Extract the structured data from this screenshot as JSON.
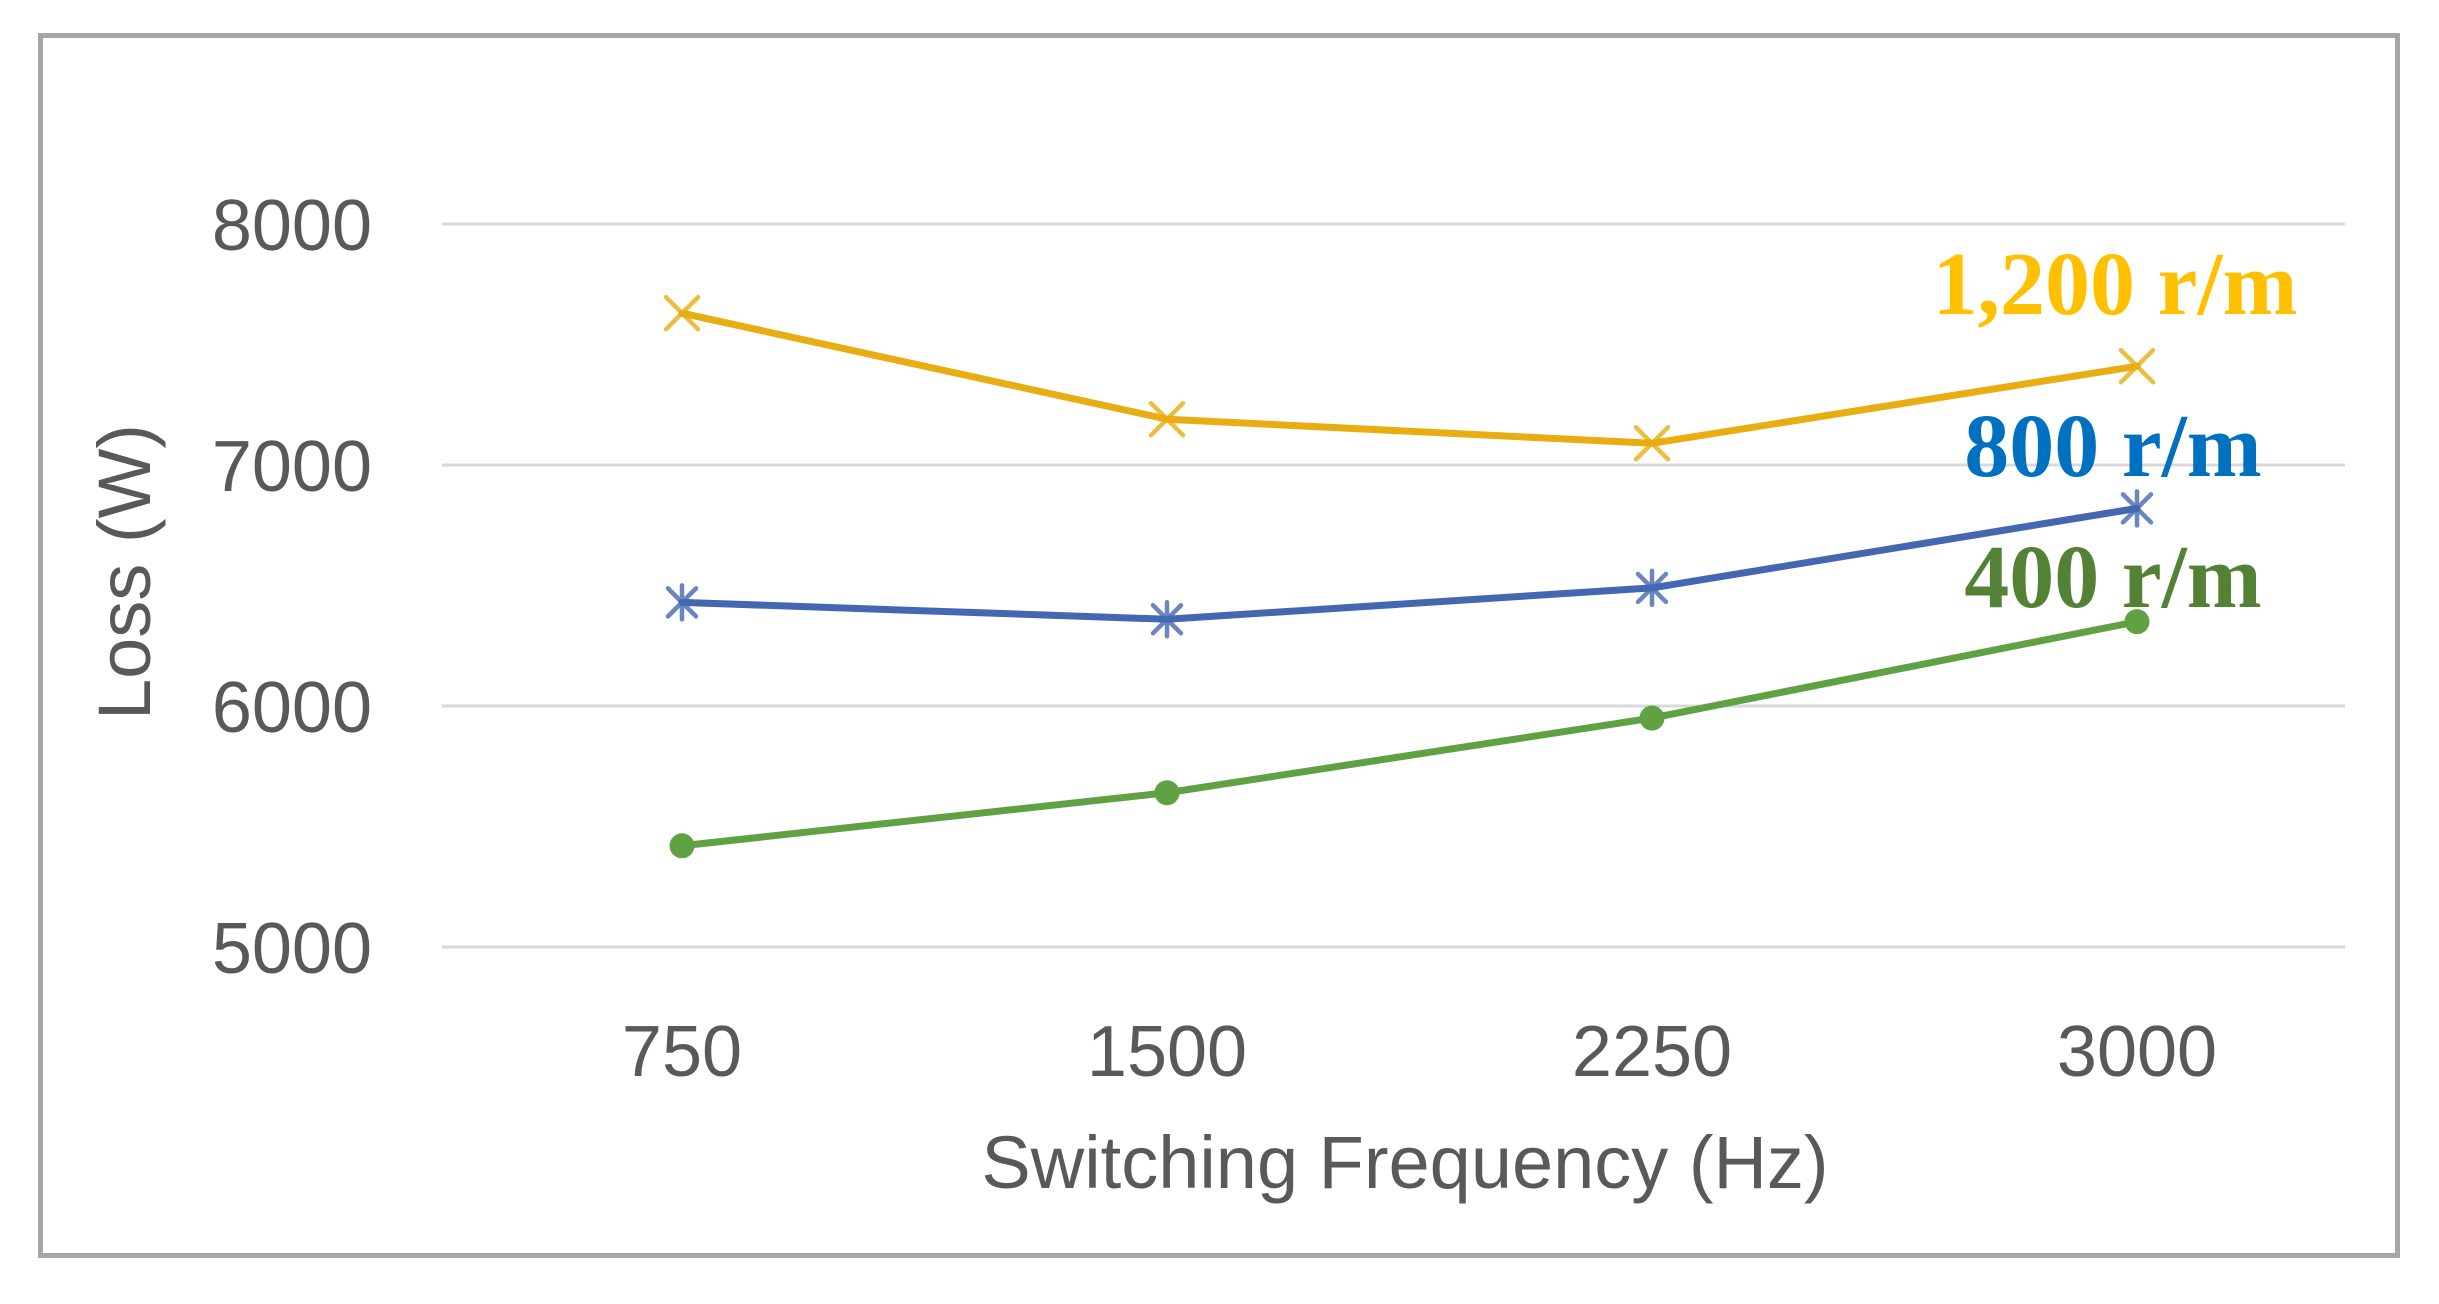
{
  "figure": {
    "background": "#ffffff",
    "border_color": "#a6a6a6",
    "gridline_color": "#d9d9d9",
    "axis_text_color": "#595959"
  },
  "chart_data": {
    "type": "line",
    "title": "",
    "xlabel": "Switching Frequency (Hz)",
    "ylabel": "Loss (W)",
    "x": [
      750,
      1500,
      2250,
      3000
    ],
    "xlim": [
      750,
      3000
    ],
    "ylim": [
      5000,
      8000
    ],
    "yticks": [
      8000,
      7000,
      6000,
      5000
    ],
    "grid": "horizontal",
    "legend_position": "inline-right",
    "series": [
      {
        "name": "1,200 r/m",
        "marker": "x",
        "color": "#e8ad10",
        "label_color": "#ffc000",
        "values": [
          7630,
          7190,
          7090,
          7410
        ]
      },
      {
        "name": "800 r/m",
        "marker": "star",
        "color": "#4368b1",
        "label_color": "#0070c0",
        "values": [
          6430,
          6360,
          6490,
          6820
        ]
      },
      {
        "name": "400 r/m",
        "marker": "circle",
        "color": "#60a143",
        "label_color": "#538135",
        "values": [
          5420,
          5640,
          5950,
          6350
        ]
      }
    ]
  }
}
